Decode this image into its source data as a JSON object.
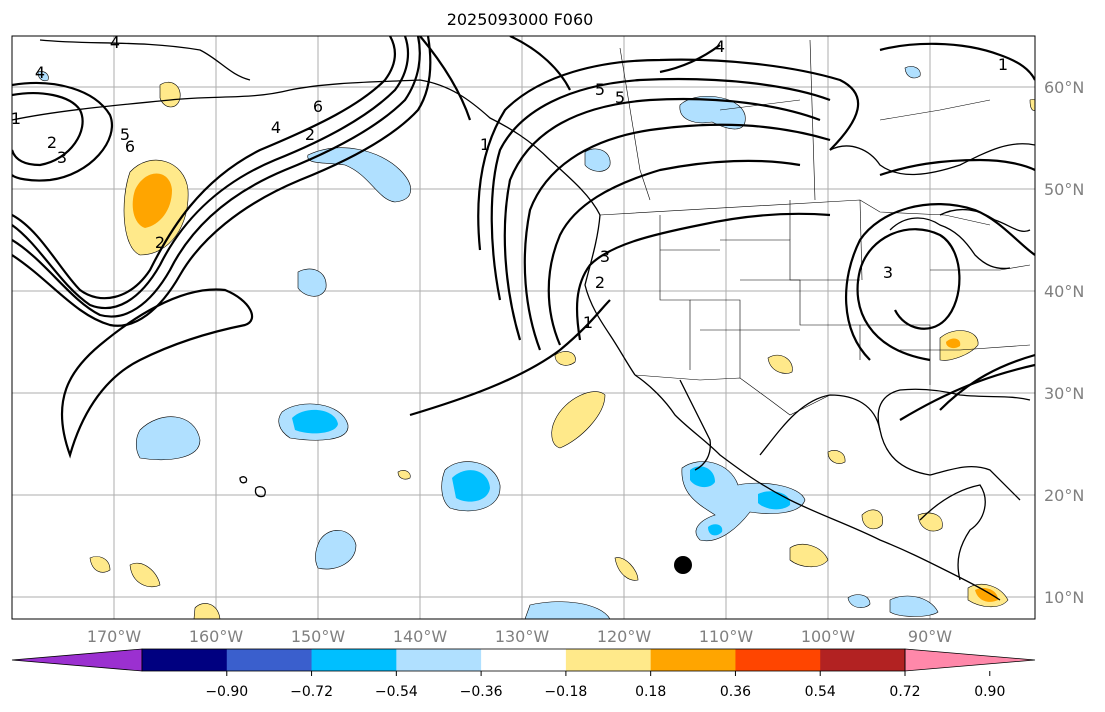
{
  "title": "2025093000 F060",
  "map": {
    "latitudes": [
      "60°N",
      "50°N",
      "40°N",
      "30°N",
      "20°N",
      "10°N"
    ],
    "longitudes": [
      "170°W",
      "160°W",
      "150°W",
      "140°W",
      "130°W",
      "120°W",
      "110°W",
      "100°W",
      "90°W"
    ],
    "contour_labels": [
      "4",
      "1",
      "2",
      "3",
      "5",
      "6",
      "2",
      "4",
      "4",
      "5",
      "1",
      "4",
      "5",
      "6",
      "3",
      "2",
      "1",
      "3",
      "2",
      "1"
    ],
    "marker": "storm-center-dot"
  },
  "colorbar": {
    "ticks": [
      "−0.90",
      "−0.72",
      "−0.54",
      "−0.36",
      "−0.18",
      "0.18",
      "0.36",
      "0.54",
      "0.72",
      "0.90"
    ],
    "colors": [
      "#9b30d0",
      "#000080",
      "#3a5fcd",
      "#00bfff",
      "#b0e0ff",
      "#ffffff",
      "#ffe98a",
      "#ffa500",
      "#ff4500",
      "#b22222",
      "#ff88aa"
    ]
  }
}
